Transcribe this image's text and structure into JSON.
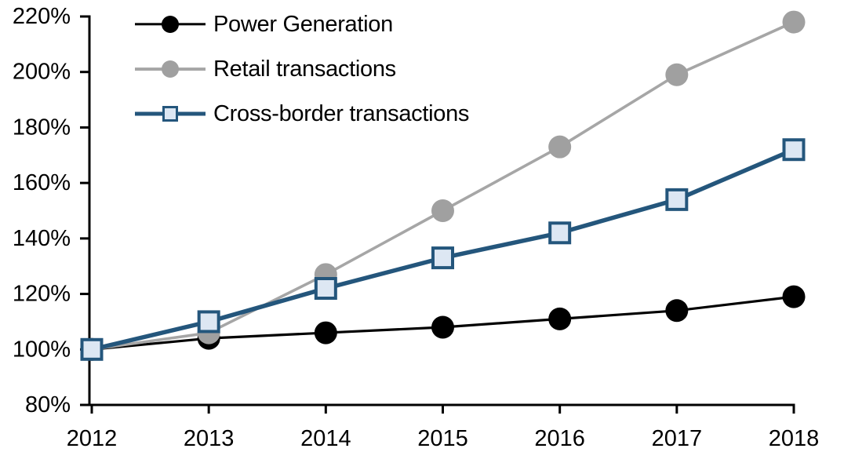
{
  "chart_data": {
    "type": "line",
    "title": "",
    "xlabel": "",
    "ylabel": "",
    "x": [
      2012,
      2013,
      2014,
      2015,
      2016,
      2017,
      2018
    ],
    "series": [
      {
        "name": "Power Generation",
        "values": [
          100,
          104,
          106,
          108,
          111,
          114,
          119
        ],
        "color": "#000000",
        "marker": "circle",
        "marker_fill": "#000000"
      },
      {
        "name": "Retail transactions",
        "values": [
          100,
          106,
          127,
          150,
          173,
          199,
          218
        ],
        "color": "#a6a6a6",
        "marker": "circle",
        "marker_fill": "#a0a0a0"
      },
      {
        "name": "Cross-border transactions",
        "values": [
          100,
          110,
          122,
          133,
          142,
          154,
          172
        ],
        "color": "#24567c",
        "marker": "square",
        "marker_fill": "#dde7f3"
      }
    ],
    "ylim": [
      80,
      220
    ],
    "ytick_step": 20,
    "ytick_suffix": "%",
    "grid": false,
    "legend_position": "top-left-inside"
  },
  "axis": {
    "y_tick_labels": [
      "220%",
      "200%",
      "180%",
      "160%",
      "140%",
      "120%",
      "100%",
      "80%"
    ],
    "x_tick_labels": [
      "2012",
      "2013",
      "2014",
      "2015",
      "2016",
      "2017",
      "2018"
    ]
  },
  "colors": {
    "background": "#ffffff",
    "axis": "#000000",
    "text": "#000000"
  }
}
